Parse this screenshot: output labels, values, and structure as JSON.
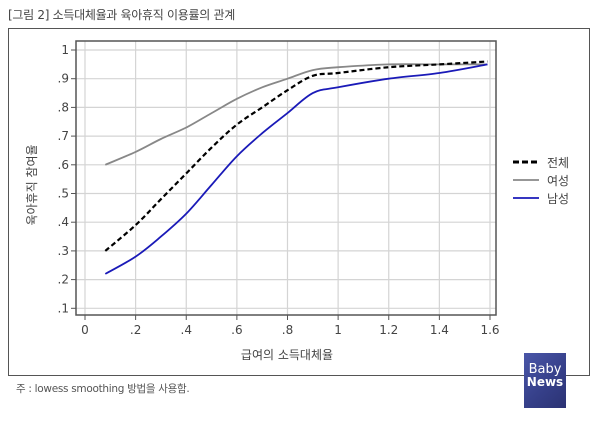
{
  "figure": {
    "title": "[그림 2] 소득대체율과 육아휴직 이용률의 관계",
    "footnote": "주 : lowess smoothing 방법을 사용함.",
    "logo": {
      "line1": "Baby",
      "line2": "News",
      "color": "#3b4596"
    }
  },
  "chart_data": {
    "type": "line",
    "title": "소득대체율과 육아휴직 이용률의 관계",
    "xlabel": "급여의 소득대체율",
    "ylabel": "육아휴직 참여율",
    "xlim": [
      0,
      1.6
    ],
    "ylim": [
      0.1,
      1.0
    ],
    "xticks": [
      "0",
      ".2",
      ".4",
      ".6",
      ".8",
      "1",
      "1.2",
      "1.4",
      "1.6"
    ],
    "yticks": [
      "1",
      ".9",
      ".8",
      ".7",
      ".6",
      ".5",
      ".4",
      ".3",
      ".2",
      ".1"
    ],
    "grid": true,
    "legend_position": "right",
    "x": [
      0.08,
      0.2,
      0.3,
      0.4,
      0.5,
      0.6,
      0.7,
      0.8,
      0.9,
      1.0,
      1.2,
      1.4,
      1.6
    ],
    "series": [
      {
        "name": "전체",
        "style": "dashed",
        "color": "#000000",
        "values": [
          0.3,
          0.39,
          0.48,
          0.57,
          0.66,
          0.74,
          0.8,
          0.86,
          0.91,
          0.92,
          0.94,
          0.95,
          0.96
        ]
      },
      {
        "name": "여성",
        "style": "solid",
        "color": "#888888",
        "values": [
          0.6,
          0.645,
          0.69,
          0.73,
          0.78,
          0.83,
          0.87,
          0.9,
          0.93,
          0.94,
          0.95,
          0.95,
          0.95
        ]
      },
      {
        "name": "남성",
        "style": "solid",
        "color": "#1a1ab8",
        "values": [
          0.22,
          0.28,
          0.35,
          0.43,
          0.53,
          0.63,
          0.71,
          0.78,
          0.85,
          0.87,
          0.9,
          0.92,
          0.95
        ]
      }
    ]
  }
}
